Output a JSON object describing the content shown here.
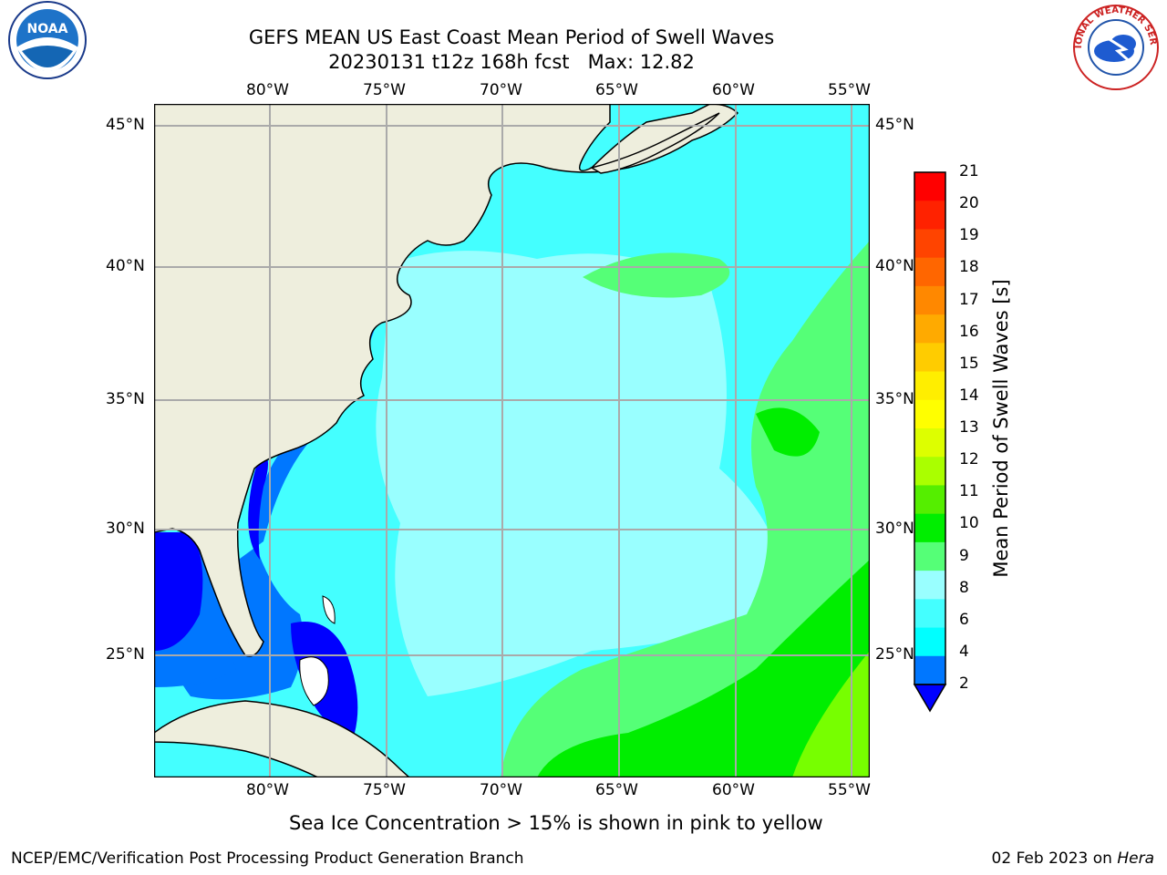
{
  "title": {
    "line1": "GEFS MEAN US East Coast Mean Period of Swell Waves",
    "line2": "20230131 t12z 168h fcst   Max: 12.82"
  },
  "map": {
    "lon_labels": [
      "80°W",
      "75°W",
      "70°W",
      "65°W",
      "60°W",
      "55°W"
    ],
    "lat_labels": [
      "45°N",
      "40°N",
      "35°N",
      "30°N",
      "25°N"
    ],
    "colors": {
      "land": "#eeeedd",
      "c2": "#0000ff",
      "c3": "#0077ff",
      "c5": "#00ffff",
      "c6": "#44ffff",
      "c8": "#99ffff",
      "c9": "#55ff77",
      "c10": "#00ee00",
      "c12": "#77ff00",
      "grid": "#aaaaaa"
    }
  },
  "colorbar": {
    "label": "Mean Period of Swell Waves [s]",
    "ticks": [
      "21",
      "20",
      "19",
      "18",
      "17",
      "16",
      "15",
      "14",
      "13",
      "12",
      "11",
      "10",
      "9",
      "8",
      "6",
      "4",
      "2"
    ],
    "colors": [
      "#ff0000",
      "#ff2200",
      "#ff4400",
      "#ff6600",
      "#ff8800",
      "#ffaa00",
      "#ffcc00",
      "#ffee00",
      "#ffff00",
      "#ddff00",
      "#aaff00",
      "#55ee00",
      "#00ee00",
      "#55ff77",
      "#99ffff",
      "#44ffff",
      "#00ffff",
      "#0077ff"
    ],
    "extend_color": "#0000ff"
  },
  "subtitle": "Sea Ice Concentration > 15% is shown in pink to yellow",
  "footer": {
    "left": "NCEP/EMC/Verification Post Processing Product Generation Branch",
    "date": "02 Feb 2023 on",
    "machine": "Hera"
  },
  "logos": {
    "noaa_text": "NOAA",
    "nws_text": "NATIONAL WEATHER SERVICE"
  }
}
